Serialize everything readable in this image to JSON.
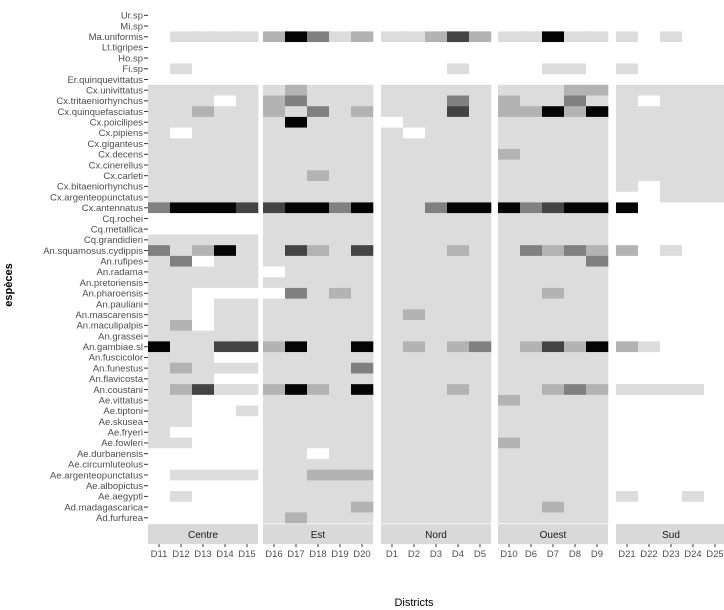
{
  "chart_data": {
    "type": "heatmap",
    "xlabel": "Districts",
    "ylabel": "espèces",
    "facets": [
      {
        "name": "Centre",
        "districts": [
          "D11",
          "D12",
          "D13",
          "D14",
          "D15"
        ]
      },
      {
        "name": "Est",
        "districts": [
          "D16",
          "D17",
          "D18",
          "D19",
          "D20"
        ]
      },
      {
        "name": "Nord",
        "districts": [
          "D1",
          "D2",
          "D3",
          "D4",
          "D5"
        ]
      },
      {
        "name": "Ouest",
        "districts": [
          "D10",
          "D6",
          "D7",
          "D8",
          "D9"
        ]
      },
      {
        "name": "Sud",
        "districts": [
          "D21",
          "D22",
          "D23",
          "D24",
          "D25"
        ]
      }
    ],
    "species": [
      "Ur.sp",
      "Mi.sp",
      "Ma.uniformis",
      "Lt.tigripes",
      "Ho.sp",
      "Fi.sp",
      "Er.quinquevittatus",
      "Cx.univittatus",
      "Cx.tritaeniorhynchus",
      "Cx.quinquefasciatus",
      "Cx.poicilipes",
      "Cx.pipiens",
      "Cx.giganteus",
      "Cx.decens",
      "Cx.cinerellus",
      "Cx.carleti",
      "Cx.bitaeniorhynchus",
      "Cx.argenteopunctatus",
      "Cx.antennatus",
      "Cq.rochei",
      "Cq.metallica",
      "Cq.grandidieri",
      "An.squamosus.cydippis",
      "An.rufipes",
      "An.radama",
      "An.pretoriensis",
      "An.pharoensis",
      "An.pauliani",
      "An.mascarensis",
      "An.maculipalpis",
      "An.grassei",
      "An.gambiae.sl",
      "An.fuscicolor",
      "An.funestus",
      "An.flavicosta",
      "An.coustani",
      "Ae.vittatus",
      "Ae.tiptoni",
      "Ae.skusea",
      "Ae.fryeri",
      "Ae.fowleri",
      "Ae.durbanensis",
      "Ae.circumluteolus",
      "Ae.argenteopunctatus",
      "Ae.albopictus",
      "Ae.aegypti",
      "Ad.madagascarica",
      "Ad.furfurea"
    ],
    "scale": "0 = absent (white), 1 = light grey ... 5 = black",
    "rows": [
      [
        "00000",
        "00000",
        "00000",
        "00000",
        "00000"
      ],
      [
        "00000",
        "00000",
        "00000",
        "00000",
        "00000"
      ],
      [
        "01111",
        "25312",
        "11242",
        "11511",
        "10100"
      ],
      [
        "00000",
        "00000",
        "00000",
        "00000",
        "00000"
      ],
      [
        "00000",
        "00000",
        "00000",
        "00000",
        "00000"
      ],
      [
        "01000",
        "00000",
        "00010",
        "00110",
        "10000"
      ],
      [
        "00000",
        "00000",
        "00000",
        "00000",
        "00000"
      ],
      [
        "11111",
        "12111",
        "11111",
        "11122",
        "11111"
      ],
      [
        "11101",
        "23111",
        "11131",
        "21131",
        "10111"
      ],
      [
        "11211",
        "21312",
        "11141",
        "22525",
        "11111"
      ],
      [
        "11111",
        "15111",
        "01111",
        "11111",
        "11111"
      ],
      [
        "10111",
        "11111",
        "10111",
        "11111",
        "11111"
      ],
      [
        "11111",
        "11111",
        "11111",
        "11111",
        "11111"
      ],
      [
        "11111",
        "11111",
        "11111",
        "21111",
        "11111"
      ],
      [
        "11111",
        "11111",
        "11111",
        "11111",
        "11111"
      ],
      [
        "11111",
        "11211",
        "11111",
        "11111",
        "11111"
      ],
      [
        "11111",
        "11111",
        "11111",
        "11111",
        "10111"
      ],
      [
        "11111",
        "11111",
        "11111",
        "11111",
        "00111"
      ],
      [
        "35554",
        "45535",
        "11355",
        "53455",
        "50000"
      ],
      [
        "00000",
        "11111",
        "11111",
        "11111",
        "00000"
      ],
      [
        "00000",
        "11111",
        "11111",
        "11111",
        "00000"
      ],
      [
        "11111",
        "11111",
        "11111",
        "11111",
        "00000"
      ],
      [
        "31251",
        "14214",
        "11121",
        "13232",
        "20100"
      ],
      [
        "13011",
        "11111",
        "11111",
        "11113",
        "00000"
      ],
      [
        "11111",
        "01111",
        "11111",
        "11111",
        "00000"
      ],
      [
        "11111",
        "11111",
        "11111",
        "11111",
        "00000"
      ],
      [
        "11000",
        "03121",
        "11111",
        "11211",
        "00000"
      ],
      [
        "11011",
        "11111",
        "11111",
        "11111",
        "00000"
      ],
      [
        "11011",
        "11111",
        "12111",
        "11111",
        "00000"
      ],
      [
        "12011",
        "11111",
        "11111",
        "11111",
        "00000"
      ],
      [
        "11111",
        "11111",
        "11111",
        "11111",
        "00000"
      ],
      [
        "51144",
        "25115",
        "12123",
        "12425",
        "21000"
      ],
      [
        "11100",
        "11111",
        "11111",
        "11111",
        "00000"
      ],
      [
        "12111",
        "11113",
        "11111",
        "11111",
        "00000"
      ],
      [
        "11100",
        "11111",
        "11111",
        "11111",
        "00000"
      ],
      [
        "12411",
        "25215",
        "11121",
        "11232",
        "11110"
      ],
      [
        "11000",
        "11111",
        "11111",
        "21111",
        "00000"
      ],
      [
        "11001",
        "11111",
        "11111",
        "11111",
        "00000"
      ],
      [
        "11000",
        "11111",
        "11111",
        "11111",
        "00000"
      ],
      [
        "10000",
        "11111",
        "11111",
        "11111",
        "00000"
      ],
      [
        "11000",
        "11111",
        "11111",
        "21111",
        "00000"
      ],
      [
        "00000",
        "11011",
        "11111",
        "11111",
        "00000"
      ],
      [
        "00000",
        "11111",
        "11111",
        "11111",
        "00000"
      ],
      [
        "01111",
        "11222",
        "11111",
        "11111",
        "00000"
      ],
      [
        "00000",
        "11111",
        "11111",
        "11111",
        "00000"
      ],
      [
        "01000",
        "11111",
        "11111",
        "11111",
        "10010"
      ],
      [
        "00000",
        "11112",
        "11111",
        "11211",
        "00000"
      ],
      [
        "00000",
        "12111",
        "11111",
        "11111",
        "00000"
      ]
    ]
  },
  "colors": {
    "panel_bg": "#ebebeb",
    "strip_bg": "#d9d9d9",
    "levels": [
      "#ffffff",
      "#dcdcdc",
      "#b3b3b3",
      "#808080",
      "#444444",
      "#050505"
    ]
  }
}
